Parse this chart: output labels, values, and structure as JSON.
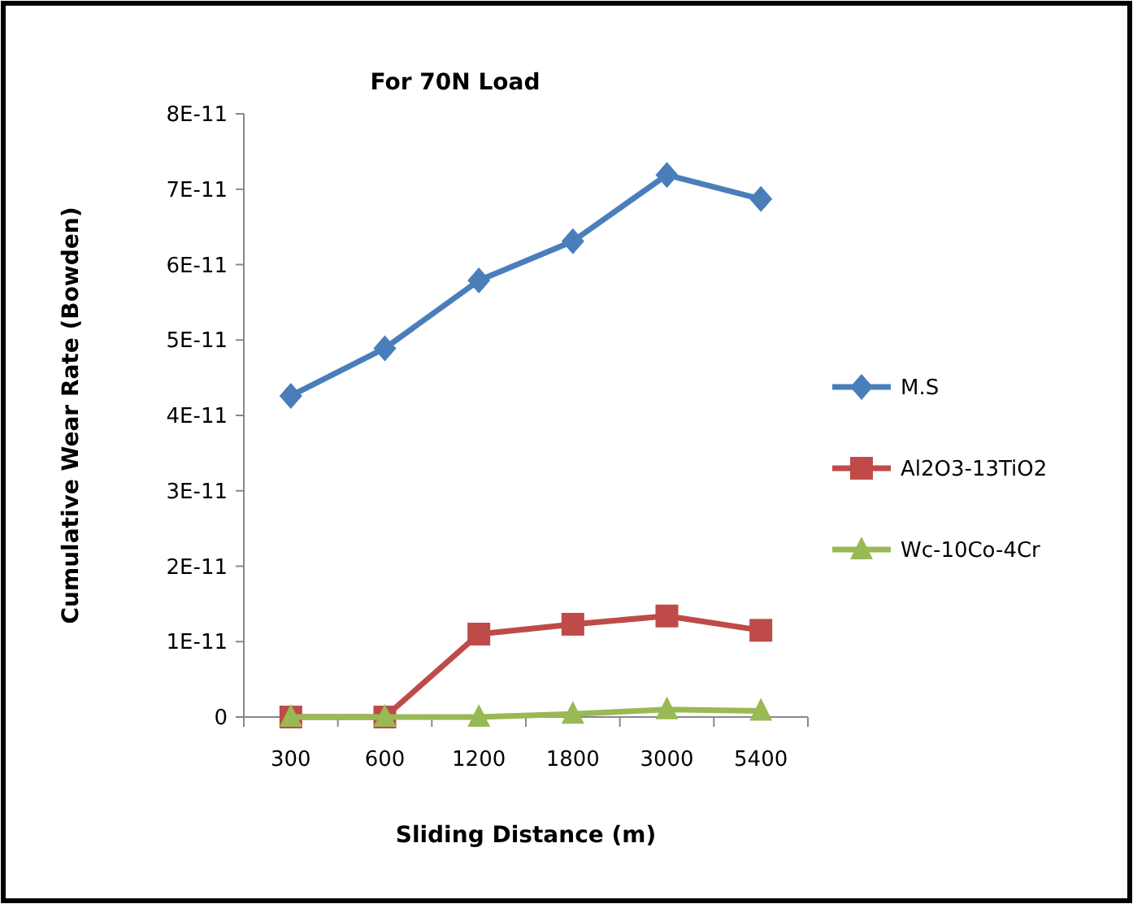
{
  "chart_data": {
    "type": "line",
    "title": "For 70N Load",
    "xlabel": "Sliding Distance (m)",
    "ylabel": "Cumulative Wear Rate (Bowden)",
    "categories": [
      "300",
      "600",
      "1200",
      "1800",
      "3000",
      "5400"
    ],
    "series": [
      {
        "name": "M.S",
        "color": "#4a7ebb",
        "marker": "diamond",
        "values": [
          4.26e-11,
          4.89e-11,
          5.79e-11,
          6.31e-11,
          7.19e-11,
          6.87e-11
        ]
      },
      {
        "name": "Al2O3-13TiO2",
        "color": "#be4b48",
        "marker": "square",
        "values": [
          0,
          0,
          1.1e-11,
          1.23e-11,
          1.34e-11,
          1.15e-11
        ]
      },
      {
        "name": "Wc-10Co-4Cr",
        "color": "#98b954",
        "marker": "triangle",
        "values": [
          0,
          0,
          0,
          4e-13,
          1e-12,
          8e-13
        ]
      }
    ],
    "ylim": [
      0,
      8e-11
    ],
    "yticks": [
      0,
      {
        "value": 1e-11,
        "label": "1E-11"
      },
      {
        "value": 2e-11,
        "label": "2E-11"
      },
      {
        "value": 3e-11,
        "label": "3E-11"
      },
      {
        "value": 4e-11,
        "label": "4E-11"
      },
      {
        "value": 5e-11,
        "label": "5E-11"
      },
      {
        "value": 6e-11,
        "label": "6E-11"
      },
      {
        "value": 7e-11,
        "label": "7E-11"
      },
      {
        "value": 8e-11,
        "label": "8E-11"
      }
    ],
    "grid": false,
    "legend": "right",
    "line_style": "solid"
  }
}
